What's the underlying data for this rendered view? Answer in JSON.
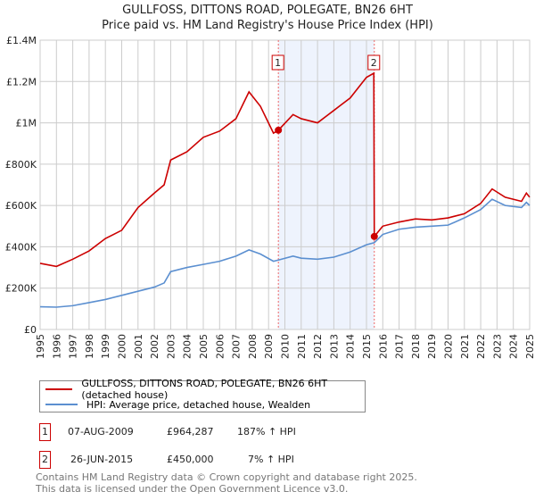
{
  "chart_data": {
    "type": "line",
    "title": "GULLFOSS, DITTONS ROAD, POLEGATE, BN26 6HT",
    "subtitle": "Price paid vs. HM Land Registry's House Price Index (HPI)",
    "xlim": [
      1995,
      2025
    ],
    "ylim": [
      0,
      1400000
    ],
    "y_ticks": [
      0,
      200000,
      400000,
      600000,
      800000,
      1000000,
      1200000,
      1400000
    ],
    "y_tick_labels": [
      "£0",
      "£200K",
      "£400K",
      "£600K",
      "£800K",
      "£1M",
      "£1.2M",
      "£1.4M"
    ],
    "x_ticks": [
      "1995",
      "1996",
      "1997",
      "1998",
      "1999",
      "2000",
      "2001",
      "2002",
      "2003",
      "2004",
      "2005",
      "2006",
      "2007",
      "2008",
      "2009",
      "2010",
      "2011",
      "2012",
      "2013",
      "2014",
      "2015",
      "2016",
      "2017",
      "2018",
      "2019",
      "2020",
      "2021",
      "2022",
      "2023",
      "2024",
      "2025"
    ],
    "grid": true,
    "shaded_range": [
      2009.6,
      2015.48
    ],
    "series": [
      {
        "name": "GULLFOSS, DITTONS ROAD, POLEGATE, BN26 6HT (detached house)",
        "color": "#cc0000",
        "x": [
          1995,
          1996,
          1997,
          1998,
          1999,
          2000,
          2001,
          2002,
          2002.6,
          2003,
          2004,
          2005,
          2006,
          2007,
          2007.8,
          2008.5,
          2009.3,
          2009.6,
          2010.5,
          2011,
          2012,
          2013,
          2014,
          2015,
          2015.45,
          2015.48,
          2016,
          2017,
          2018,
          2019,
          2020,
          2021,
          2022,
          2022.7,
          2023.5,
          2024.5,
          2024.8,
          2025
        ],
        "y": [
          320000,
          305000,
          340000,
          380000,
          440000,
          480000,
          590000,
          660000,
          700000,
          820000,
          860000,
          930000,
          960000,
          1020000,
          1150000,
          1080000,
          950000,
          964287,
          1040000,
          1020000,
          1000000,
          1060000,
          1120000,
          1220000,
          1240000,
          450000,
          500000,
          520000,
          535000,
          530000,
          540000,
          560000,
          610000,
          680000,
          640000,
          620000,
          660000,
          640000
        ]
      },
      {
        "name": "HPI: Average price, detached house, Wealden",
        "color": "#5b8fd0",
        "x": [
          1995,
          1996,
          1997,
          1998,
          1999,
          2000,
          2001,
          2002,
          2002.6,
          2003,
          2004,
          2005,
          2006,
          2007,
          2007.8,
          2008.5,
          2009.3,
          2009.6,
          2010.5,
          2011,
          2012,
          2013,
          2014,
          2015,
          2015.48,
          2016,
          2017,
          2018,
          2019,
          2020,
          2021,
          2022,
          2022.7,
          2023.5,
          2024.5,
          2024.8,
          2025
        ],
        "y": [
          110000,
          108000,
          115000,
          130000,
          145000,
          165000,
          185000,
          205000,
          225000,
          280000,
          300000,
          315000,
          330000,
          355000,
          385000,
          365000,
          330000,
          336000,
          355000,
          345000,
          340000,
          350000,
          375000,
          410000,
          420000,
          460000,
          485000,
          495000,
          500000,
          505000,
          540000,
          580000,
          630000,
          600000,
          590000,
          615000,
          600000
        ]
      }
    ],
    "sales": [
      {
        "label": "1",
        "x": 2009.6,
        "y": 964287
      },
      {
        "label": "2",
        "x": 2015.48,
        "y": 450000
      }
    ]
  },
  "header": {
    "title": "GULLFOSS, DITTONS ROAD, POLEGATE, BN26 6HT",
    "subtitle": "Price paid vs. HM Land Registry's House Price Index (HPI)"
  },
  "legend": {
    "items": [
      {
        "label": "GULLFOSS, DITTONS ROAD, POLEGATE, BN26 6HT (detached house)",
        "color": "#cc0000"
      },
      {
        "label": "HPI: Average price, detached house, Wealden",
        "color": "#5b8fd0"
      }
    ]
  },
  "transactions": [
    {
      "num": "1",
      "date": "07-AUG-2009",
      "price": "£964,287",
      "hpi": "187% ↑ HPI"
    },
    {
      "num": "2",
      "date": "26-JUN-2015",
      "price": "£450,000",
      "hpi": "7% ↑ HPI"
    }
  ],
  "footer": {
    "line1": "Contains HM Land Registry data © Crown copyright and database right 2025.",
    "line2": "This data is licensed under the Open Government Licence v3.0."
  }
}
